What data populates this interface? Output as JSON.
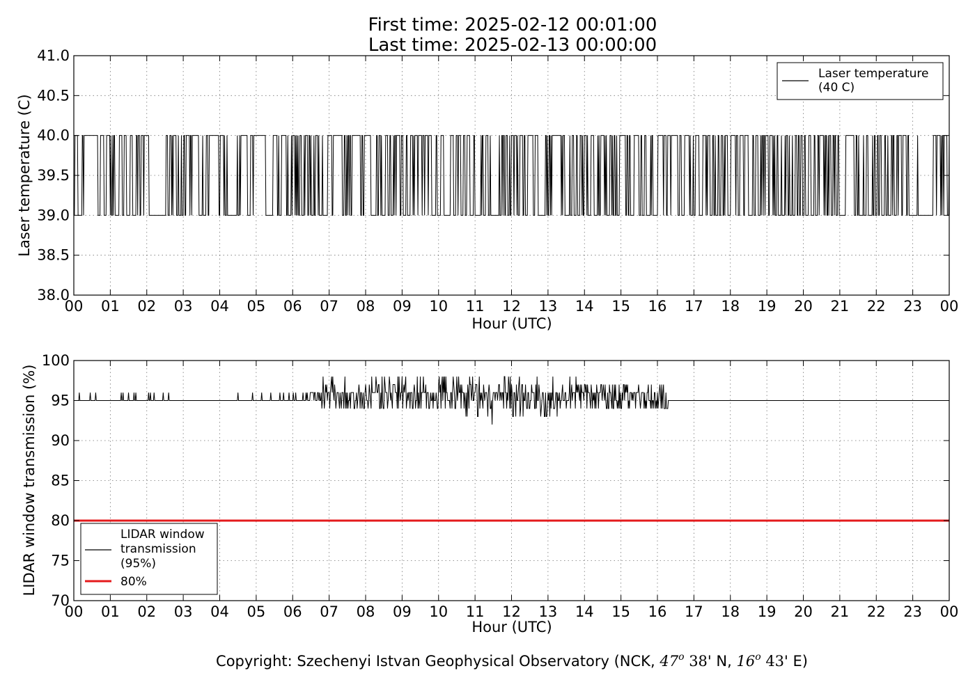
{
  "title": {
    "line1": "First time: 2025-02-12 00:01:00",
    "line2": "Last time: 2025-02-13 00:00:00"
  },
  "copyright": {
    "prefix": "Copyright: Szechenyi Istvan Geophysical Observatory (NCK,",
    "lat_deg": "47",
    "deg_sup": "o",
    "lat_min": "38",
    "lat_suffix": "' N,",
    "lon_deg": "16",
    "lon_min": "43",
    "lon_suffix": "' E)"
  },
  "colors": {
    "series": "#000000",
    "threshold": "#e41a1c",
    "axes": "#000000",
    "background": "#ffffff"
  },
  "chart_data": [
    {
      "type": "line",
      "xlabel": "Hour (UTC)",
      "ylabel": "Laser temperature (C)",
      "xlim": [
        0,
        24
      ],
      "ylim": [
        38.0,
        41.0
      ],
      "x_tick_values": [
        0,
        1,
        2,
        3,
        4,
        5,
        6,
        7,
        8,
        9,
        10,
        11,
        12,
        13,
        14,
        15,
        16,
        17,
        18,
        19,
        20,
        21,
        22,
        23,
        24
      ],
      "x_tick_labels": [
        "00",
        "01",
        "02",
        "03",
        "04",
        "05",
        "06",
        "07",
        "08",
        "09",
        "10",
        "11",
        "12",
        "13",
        "14",
        "15",
        "16",
        "17",
        "18",
        "19",
        "20",
        "21",
        "22",
        "23",
        "00"
      ],
      "y_ticks": [
        38.0,
        38.5,
        39.0,
        39.5,
        40.0,
        40.5,
        41.0
      ],
      "y_tick_labels": [
        "38.0",
        "38.5",
        "39.0",
        "39.5",
        "40.0",
        "40.5",
        "41.0"
      ],
      "grid": true,
      "legend_position": "top-right",
      "legend": [
        {
          "label_line1": "Laser temperature",
          "label_line2": "(40 C)",
          "style": "line",
          "color": "#000000"
        }
      ],
      "series": [
        {
          "name": "Laser temperature (40 C)",
          "sampling": "1-minute samples from 00:01 to 24:00 UTC; each sample reads 39.0 or 40.0 C, switching rapidly throughout the day",
          "values_set": [
            39.0,
            40.0
          ],
          "min": 39.0,
          "max": 40.0
        }
      ]
    },
    {
      "type": "line",
      "xlabel": "Hour (UTC)",
      "ylabel": "LIDAR window transmission (%)",
      "xlim": [
        0,
        24
      ],
      "ylim": [
        70,
        100
      ],
      "x_tick_values": [
        0,
        1,
        2,
        3,
        4,
        5,
        6,
        7,
        8,
        9,
        10,
        11,
        12,
        13,
        14,
        15,
        16,
        17,
        18,
        19,
        20,
        21,
        22,
        23,
        24
      ],
      "x_tick_labels": [
        "00",
        "01",
        "02",
        "03",
        "04",
        "05",
        "06",
        "07",
        "08",
        "09",
        "10",
        "11",
        "12",
        "13",
        "14",
        "15",
        "16",
        "17",
        "18",
        "19",
        "20",
        "21",
        "22",
        "23",
        "00"
      ],
      "y_ticks": [
        70,
        75,
        80,
        85,
        90,
        95,
        100
      ],
      "y_tick_labels": [
        "70",
        "75",
        "80",
        "85",
        "90",
        "95",
        "100"
      ],
      "grid": true,
      "legend_position": "lower-left",
      "legend": [
        {
          "label_lines": [
            "LIDAR window",
            "transmission",
            "(95%)"
          ],
          "style": "line",
          "color": "#000000"
        },
        {
          "label_lines": [
            "80%"
          ],
          "style": "thick-line",
          "color": "#e41a1c"
        }
      ],
      "series": [
        {
          "name": "LIDAR window transmission (95%)",
          "baseline": 95,
          "spikes_early": [
            0.15,
            0.45,
            0.6,
            1.3,
            1.35,
            1.5,
            1.65,
            1.7,
            2.05,
            2.1,
            2.2,
            2.45,
            2.6,
            4.5,
            4.9,
            5.15,
            5.4,
            5.65,
            5.75,
            5.9
          ],
          "spike_value": 96,
          "noisy_segments": [
            {
              "x_start": 6.0,
              "x_end": 6.8,
              "min": 95,
              "max": 96
            },
            {
              "x_start": 6.8,
              "x_end": 10.7,
              "min": 94,
              "max": 98
            },
            {
              "x_start": 10.7,
              "x_end": 13.8,
              "min": 92,
              "max": 98
            },
            {
              "x_start": 13.8,
              "x_end": 16.3,
              "min": 94,
              "max": 97
            }
          ],
          "after": {
            "x_start": 16.3,
            "x_end": 24,
            "value": 95
          }
        },
        {
          "name": "80%",
          "value": 80
        }
      ]
    }
  ]
}
